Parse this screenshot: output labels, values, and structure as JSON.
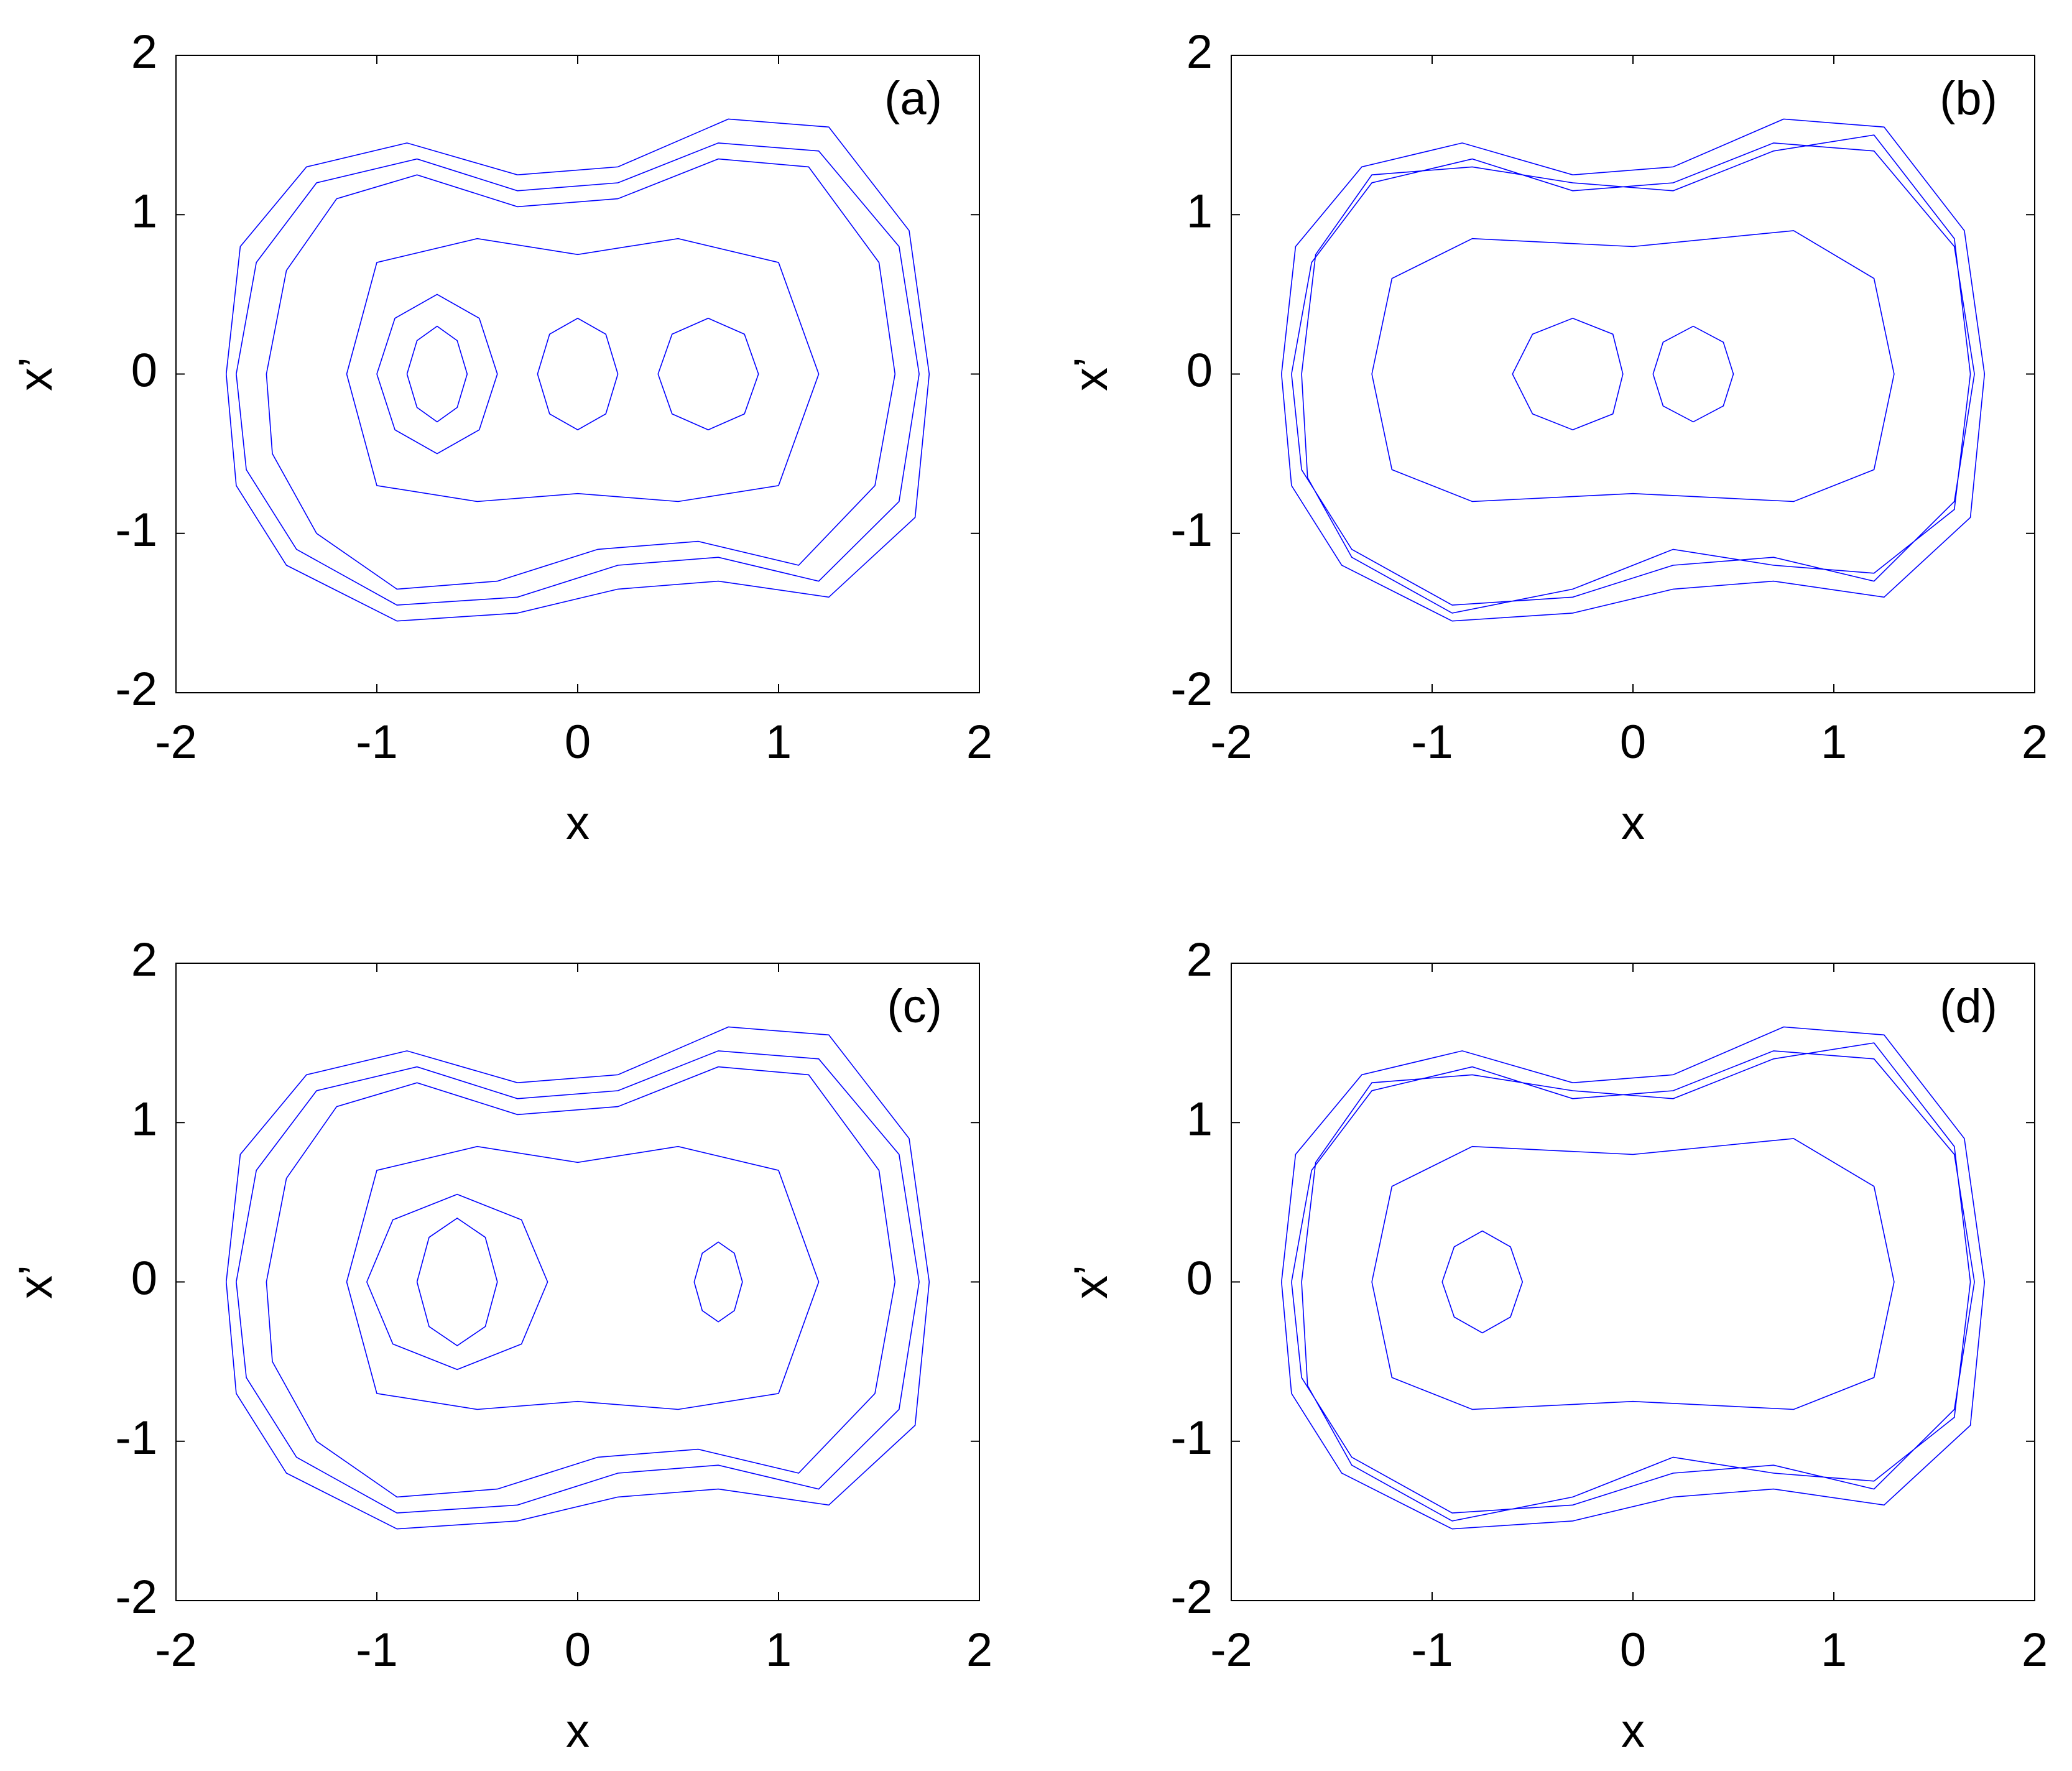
{
  "chart_data": [
    {
      "type": "line",
      "label": "(a)",
      "xlabel": "x",
      "ylabel": "x’",
      "xlim": [
        -2,
        2
      ],
      "ylim": [
        -2,
        2
      ],
      "xticks": [
        -2,
        -1,
        0,
        1,
        2
      ],
      "yticks": [
        -2,
        -1,
        0,
        1,
        2
      ],
      "series": [
        {
          "color": "#0000ff",
          "x": [
            -1.7,
            -1.6,
            -1.3,
            -0.8,
            -0.3,
            0.2,
            0.7,
            1.2,
            1.6,
            1.7,
            1.6,
            1.2,
            0.7,
            0.2,
            -0.3,
            -0.9,
            -1.4,
            -1.65,
            -1.7,
            null,
            -1.55,
            -1.45,
            -1.2,
            -0.8,
            -0.3,
            0.2,
            0.7,
            1.15,
            1.5,
            1.58,
            1.48,
            1.1,
            0.6,
            0.1,
            -0.4,
            -0.9,
            -1.3,
            -1.52,
            -1.55,
            null,
            -1.75,
            -1.68,
            -1.35,
            -0.85,
            -0.3,
            0.2,
            0.75,
            1.25,
            1.65,
            1.75,
            1.68,
            1.25,
            0.7,
            0.2,
            -0.3,
            -0.9,
            -1.45,
            -1.7,
            -1.75,
            null,
            -1.15,
            -1.0,
            -0.5,
            0,
            0.5,
            1.0,
            1.2,
            1.0,
            0.5,
            0,
            -0.5,
            -1.0,
            -1.15,
            null,
            -0.85,
            -0.8,
            -0.7,
            -0.6,
            -0.55,
            -0.6,
            -0.7,
            -0.8,
            -0.85,
            null,
            -1.0,
            -0.91,
            -0.7,
            -0.49,
            -0.4,
            -0.49,
            -0.7,
            -0.91,
            -1.0,
            null,
            0.4,
            0.47,
            0.65,
            0.83,
            0.9,
            0.83,
            0.65,
            0.47,
            0.4,
            null,
            -0.2,
            -0.14,
            0,
            0.14,
            0.2,
            0.14,
            0,
            -0.14,
            -0.2
          ],
          "y": [
            0,
            0.7,
            1.2,
            1.35,
            1.15,
            1.2,
            1.45,
            1.4,
            0.8,
            0,
            -0.8,
            -1.3,
            -1.15,
            -1.2,
            -1.4,
            -1.45,
            -1.1,
            -0.6,
            0,
            null,
            0,
            0.65,
            1.1,
            1.25,
            1.05,
            1.1,
            1.35,
            1.3,
            0.7,
            0,
            -0.7,
            -1.2,
            -1.05,
            -1.1,
            -1.3,
            -1.35,
            -1.0,
            -0.5,
            0,
            null,
            0,
            0.8,
            1.3,
            1.45,
            1.25,
            1.3,
            1.6,
            1.55,
            0.9,
            0,
            -0.9,
            -1.4,
            -1.3,
            -1.35,
            -1.5,
            -1.55,
            -1.2,
            -0.7,
            0,
            null,
            0,
            0.7,
            0.85,
            0.75,
            0.85,
            0.7,
            0,
            -0.7,
            -0.8,
            -0.75,
            -0.8,
            -0.7,
            0,
            null,
            0,
            0.21,
            0.3,
            0.21,
            0,
            -0.21,
            -0.3,
            -0.21,
            0,
            null,
            0,
            0.35,
            0.5,
            0.35,
            0,
            -0.35,
            -0.5,
            -0.35,
            0,
            null,
            0,
            0.25,
            0.35,
            0.25,
            0,
            -0.25,
            -0.35,
            -0.25,
            0,
            null,
            0,
            0.25,
            0.35,
            0.25,
            0,
            -0.25,
            -0.35,
            -0.25,
            0
          ]
        }
      ]
    },
    {
      "type": "line",
      "label": "(b)",
      "xlabel": "x",
      "ylabel": "x’",
      "xlim": [
        -2,
        2
      ],
      "ylim": [
        -2,
        2
      ],
      "xticks": [
        -2,
        -1,
        0,
        1,
        2
      ],
      "yticks": [
        -2,
        -1,
        0,
        1,
        2
      ],
      "series": [
        {
          "color": "#0000ff",
          "x": [
            -1.7,
            -1.6,
            -1.3,
            -0.8,
            -0.3,
            0.2,
            0.7,
            1.2,
            1.6,
            1.7,
            1.6,
            1.2,
            0.7,
            0.2,
            -0.3,
            -0.9,
            -1.4,
            -1.65,
            -1.7,
            null,
            -1.75,
            -1.68,
            -1.35,
            -0.85,
            -0.3,
            0.2,
            0.75,
            1.25,
            1.65,
            1.75,
            1.68,
            1.25,
            0.7,
            0.2,
            -0.3,
            -0.9,
            -1.45,
            -1.7,
            -1.75,
            null,
            -1.65,
            -1.58,
            -1.3,
            -0.8,
            -0.3,
            0.2,
            0.7,
            1.2,
            1.6,
            1.68,
            1.6,
            1.2,
            0.7,
            0.2,
            -0.3,
            -0.9,
            -1.4,
            -1.62,
            -1.65,
            null,
            -1.3,
            -1.2,
            -0.8,
            0,
            0.8,
            1.2,
            1.3,
            1.2,
            0.8,
            0,
            -0.8,
            -1.2,
            -1.3,
            null,
            -0.6,
            -0.5,
            -0.3,
            -0.1,
            -0.05,
            -0.1,
            -0.3,
            -0.5,
            -0.6,
            null,
            0.1,
            0.15,
            0.3,
            0.45,
            0.5,
            0.45,
            0.3,
            0.15,
            0.1
          ],
          "y": [
            0,
            0.7,
            1.2,
            1.35,
            1.15,
            1.2,
            1.45,
            1.4,
            0.8,
            0,
            -0.8,
            -1.3,
            -1.15,
            -1.2,
            -1.4,
            -1.45,
            -1.1,
            -0.6,
            0,
            null,
            0,
            0.8,
            1.3,
            1.45,
            1.25,
            1.3,
            1.6,
            1.55,
            0.9,
            0,
            -0.9,
            -1.4,
            -1.3,
            -1.35,
            -1.5,
            -1.55,
            -1.2,
            -0.7,
            0,
            null,
            0,
            0.75,
            1.25,
            1.3,
            1.2,
            1.15,
            1.4,
            1.5,
            0.85,
            0,
            -0.85,
            -1.25,
            -1.2,
            -1.1,
            -1.35,
            -1.5,
            -1.15,
            -0.65,
            0,
            null,
            0,
            0.6,
            0.85,
            0.8,
            0.9,
            0.6,
            0,
            -0.6,
            -0.8,
            -0.75,
            -0.8,
            -0.6,
            0,
            null,
            0,
            0.25,
            0.35,
            0.25,
            0,
            -0.25,
            -0.35,
            -0.25,
            0,
            null,
            0,
            0.2,
            0.3,
            0.2,
            0,
            -0.2,
            -0.3,
            -0.2,
            0
          ]
        }
      ]
    },
    {
      "type": "line",
      "label": "(c)",
      "xlabel": "x",
      "ylabel": "x’",
      "xlim": [
        -2,
        2
      ],
      "ylim": [
        -2,
        2
      ],
      "xticks": [
        -2,
        -1,
        0,
        1,
        2
      ],
      "yticks": [
        -2,
        -1,
        0,
        1,
        2
      ],
      "series": [
        {
          "color": "#0000ff",
          "x": [
            -1.7,
            -1.6,
            -1.3,
            -0.8,
            -0.3,
            0.2,
            0.7,
            1.2,
            1.6,
            1.7,
            1.6,
            1.2,
            0.7,
            0.2,
            -0.3,
            -0.9,
            -1.4,
            -1.65,
            -1.7,
            null,
            -1.55,
            -1.45,
            -1.2,
            -0.8,
            -0.3,
            0.2,
            0.7,
            1.15,
            1.5,
            1.58,
            1.48,
            1.1,
            0.6,
            0.1,
            -0.4,
            -0.9,
            -1.3,
            -1.52,
            -1.55,
            null,
            -1.75,
            -1.68,
            -1.35,
            -0.85,
            -0.3,
            0.2,
            0.75,
            1.25,
            1.65,
            1.75,
            1.68,
            1.25,
            0.7,
            0.2,
            -0.3,
            -0.9,
            -1.45,
            -1.7,
            -1.75,
            null,
            -1.15,
            -1.0,
            -0.5,
            0,
            0.5,
            1.0,
            1.2,
            1.0,
            0.5,
            0,
            -0.5,
            -1.0,
            -1.15,
            null,
            -0.8,
            -0.74,
            -0.6,
            -0.46,
            -0.4,
            -0.46,
            -0.6,
            -0.74,
            -0.8,
            null,
            -1.05,
            -0.92,
            -0.6,
            -0.28,
            -0.15,
            -0.28,
            -0.6,
            -0.92,
            -1.05,
            null,
            0.58,
            0.62,
            0.7,
            0.78,
            0.82,
            0.78,
            0.7,
            0.62,
            0.58
          ],
          "y": [
            0,
            0.7,
            1.2,
            1.35,
            1.15,
            1.2,
            1.45,
            1.4,
            0.8,
            0,
            -0.8,
            -1.3,
            -1.15,
            -1.2,
            -1.4,
            -1.45,
            -1.1,
            -0.6,
            0,
            null,
            0,
            0.65,
            1.1,
            1.25,
            1.05,
            1.1,
            1.35,
            1.3,
            0.7,
            0,
            -0.7,
            -1.2,
            -1.05,
            -1.1,
            -1.3,
            -1.35,
            -1.0,
            -0.5,
            0,
            null,
            0,
            0.8,
            1.3,
            1.45,
            1.25,
            1.3,
            1.6,
            1.55,
            0.9,
            0,
            -0.9,
            -1.4,
            -1.3,
            -1.35,
            -1.5,
            -1.55,
            -1.2,
            -0.7,
            0,
            null,
            0,
            0.7,
            0.85,
            0.75,
            0.85,
            0.7,
            0,
            -0.7,
            -0.8,
            -0.75,
            -0.8,
            -0.7,
            0,
            null,
            0,
            0.28,
            0.4,
            0.28,
            0,
            -0.28,
            -0.4,
            -0.28,
            0,
            null,
            0,
            0.39,
            0.55,
            0.39,
            0,
            -0.39,
            -0.55,
            -0.39,
            0,
            null,
            0,
            0.18,
            0.25,
            0.18,
            0,
            -0.18,
            -0.25,
            -0.18,
            0
          ]
        }
      ]
    },
    {
      "type": "line",
      "label": "(d)",
      "xlabel": "x",
      "ylabel": "x’",
      "xlim": [
        -2,
        2
      ],
      "ylim": [
        -2,
        2
      ],
      "xticks": [
        -2,
        -1,
        0,
        1,
        2
      ],
      "yticks": [
        -2,
        -1,
        0,
        1,
        2
      ],
      "series": [
        {
          "color": "#0000ff",
          "x": [
            -1.7,
            -1.6,
            -1.3,
            -0.8,
            -0.3,
            0.2,
            0.7,
            1.2,
            1.6,
            1.7,
            1.6,
            1.2,
            0.7,
            0.2,
            -0.3,
            -0.9,
            -1.4,
            -1.65,
            -1.7,
            null,
            -1.75,
            -1.68,
            -1.35,
            -0.85,
            -0.3,
            0.2,
            0.75,
            1.25,
            1.65,
            1.75,
            1.68,
            1.25,
            0.7,
            0.2,
            -0.3,
            -0.9,
            -1.45,
            -1.7,
            -1.75,
            null,
            -1.65,
            -1.58,
            -1.3,
            -0.8,
            -0.3,
            0.2,
            0.7,
            1.2,
            1.6,
            1.68,
            1.6,
            1.2,
            0.7,
            0.2,
            -0.3,
            -0.9,
            -1.4,
            -1.62,
            -1.65,
            null,
            -1.3,
            -1.2,
            -0.8,
            0,
            0.8,
            1.2,
            1.3,
            1.2,
            0.8,
            0,
            -0.8,
            -1.2,
            -1.3,
            null,
            -0.95,
            -0.89,
            -0.75,
            -0.61,
            -0.55,
            -0.61,
            -0.75,
            -0.89,
            -0.95
          ],
          "y": [
            0,
            0.7,
            1.2,
            1.35,
            1.15,
            1.2,
            1.45,
            1.4,
            0.8,
            0,
            -0.8,
            -1.3,
            -1.15,
            -1.2,
            -1.4,
            -1.45,
            -1.1,
            -0.6,
            0,
            null,
            0,
            0.8,
            1.3,
            1.45,
            1.25,
            1.3,
            1.6,
            1.55,
            0.9,
            0,
            -0.9,
            -1.4,
            -1.3,
            -1.35,
            -1.5,
            -1.55,
            -1.2,
            -0.7,
            0,
            null,
            0,
            0.75,
            1.25,
            1.3,
            1.2,
            1.15,
            1.4,
            1.5,
            0.85,
            0,
            -0.85,
            -1.25,
            -1.2,
            -1.1,
            -1.35,
            -1.5,
            -1.15,
            -0.65,
            0,
            null,
            0,
            0.6,
            0.85,
            0.8,
            0.9,
            0.6,
            0,
            -0.6,
            -0.8,
            -0.75,
            -0.8,
            -0.6,
            0,
            null,
            0,
            0.22,
            0.32,
            0.22,
            0,
            -0.22,
            -0.32,
            -0.22,
            0
          ]
        }
      ]
    }
  ]
}
